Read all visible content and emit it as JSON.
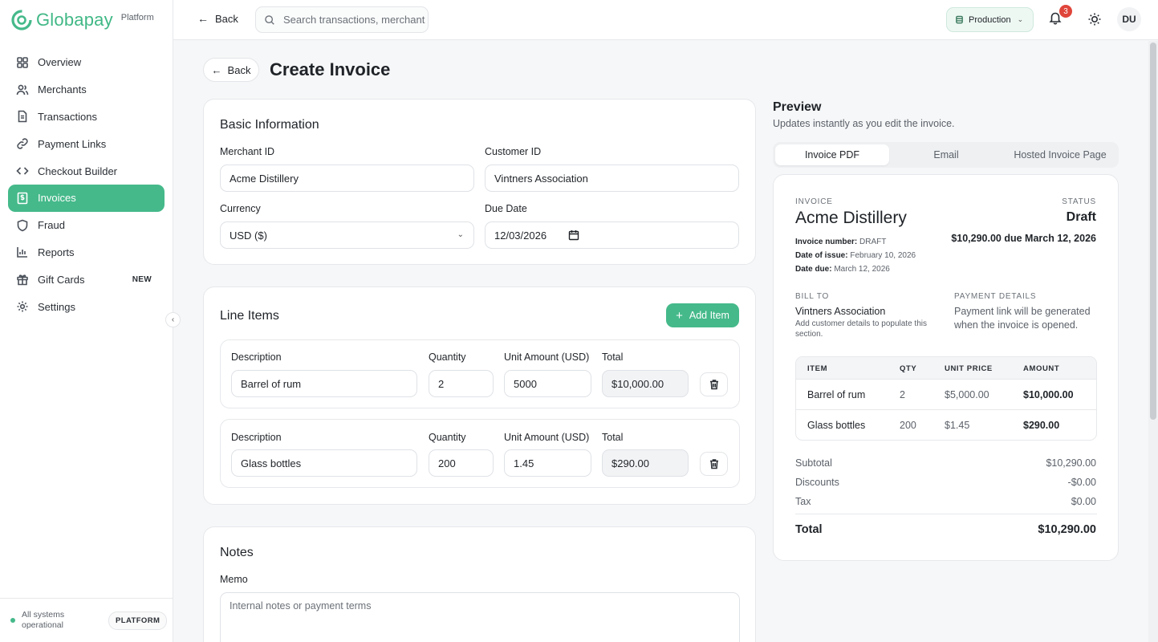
{
  "brand": {
    "name": "Globapay",
    "sub": "Platform"
  },
  "sidebar": {
    "items": [
      {
        "label": "Overview",
        "icon": "grid-icon"
      },
      {
        "label": "Merchants",
        "icon": "users-icon"
      },
      {
        "label": "Transactions",
        "icon": "file-icon"
      },
      {
        "label": "Payment Links",
        "icon": "link-icon"
      },
      {
        "label": "Checkout Builder",
        "icon": "code-icon"
      },
      {
        "label": "Invoices",
        "icon": "invoice-icon",
        "active": true
      },
      {
        "label": "Fraud",
        "icon": "shield-icon"
      },
      {
        "label": "Reports",
        "icon": "bar-chart-icon"
      },
      {
        "label": "Gift Cards",
        "icon": "gift-icon",
        "badge": "NEW"
      },
      {
        "label": "Settings",
        "icon": "gear-icon"
      }
    ],
    "status_text": "All systems operational",
    "platform_label": "PLATFORM"
  },
  "topbar": {
    "back_label": "Back",
    "search_placeholder": "Search transactions, merchant",
    "environment": "Production",
    "notification_count": "3",
    "avatar_initials": "DU"
  },
  "page": {
    "back_label": "Back",
    "title": "Create Invoice"
  },
  "basic": {
    "title": "Basic Information",
    "merchant_label": "Merchant ID",
    "merchant_value": "Acme Distillery",
    "customer_label": "Customer ID",
    "customer_value": "Vintners Association",
    "currency_label": "Currency",
    "currency_value": "USD ($)",
    "due_label": "Due Date",
    "due_value": "12/03/2026"
  },
  "line_items": {
    "title": "Line Items",
    "add_label": "Add Item",
    "col_description": "Description",
    "col_quantity": "Quantity",
    "col_unit": "Unit Amount (USD)",
    "col_total": "Total",
    "rows": [
      {
        "description": "Barrel of rum",
        "quantity": "2",
        "unit": "5000",
        "total": "$10,000.00"
      },
      {
        "description": "Glass bottles",
        "quantity": "200",
        "unit": "1.45",
        "total": "$290.00"
      }
    ]
  },
  "notes": {
    "title": "Notes",
    "memo_label": "Memo",
    "memo_placeholder": "Internal notes or payment terms"
  },
  "preview": {
    "title": "Preview",
    "subtitle": "Updates instantly as you edit the invoice.",
    "tabs": [
      "Invoice PDF",
      "Email",
      "Hosted Invoice Page"
    ],
    "invoice_caption": "INVOICE",
    "merchant_name": "Acme Distillery",
    "status_caption": "STATUS",
    "status_value": "Draft",
    "due_summary": "$10,290.00 due March 12, 2026",
    "meta": [
      {
        "key": "Invoice number:",
        "value": "DRAFT"
      },
      {
        "key": "Date of issue:",
        "value": "February 10, 2026"
      },
      {
        "key": "Date due:",
        "value": "March 12, 2026"
      }
    ],
    "bill_to_caption": "BILL TO",
    "bill_to_name": "Vintners Association",
    "bill_to_note": "Add customer details to populate this section.",
    "payment_caption": "PAYMENT DETAILS",
    "payment_note": "Payment link will be generated when the invoice is opened.",
    "table_headers": [
      "ITEM",
      "QTY",
      "UNIT PRICE",
      "AMOUNT"
    ],
    "table_rows": [
      {
        "item": "Barrel of rum",
        "qty": "2",
        "unit_price": "$5,000.00",
        "amount": "$10,000.00"
      },
      {
        "item": "Glass bottles",
        "qty": "200",
        "unit_price": "$1.45",
        "amount": "$290.00"
      }
    ],
    "subtotal_label": "Subtotal",
    "subtotal_value": "$10,290.00",
    "discounts_label": "Discounts",
    "discounts_value": "-$0.00",
    "tax_label": "Tax",
    "tax_value": "$0.00",
    "total_label": "Total",
    "total_value": "$10,290.00"
  },
  "colors": {
    "accent": "#45b98a",
    "badge_red": "#e0453a"
  }
}
